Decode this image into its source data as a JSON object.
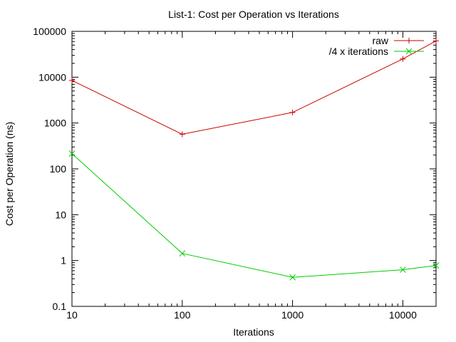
{
  "chart_data": {
    "type": "line",
    "title": "List-1: Cost per Operation vs Iterations",
    "xlabel": "Iterations",
    "ylabel": "Cost per Operation (ns)",
    "x_scale": "log",
    "y_scale": "log",
    "xlim": [
      10,
      20000
    ],
    "ylim": [
      0.1,
      100000
    ],
    "x_ticks": [
      {
        "value": 10,
        "label": "10"
      },
      {
        "value": 100,
        "label": "100"
      },
      {
        "value": 1000,
        "label": "1000"
      },
      {
        "value": 10000,
        "label": "10000"
      }
    ],
    "y_ticks": [
      {
        "value": 0.1,
        "label": "0.1"
      },
      {
        "value": 1,
        "label": "1"
      },
      {
        "value": 10,
        "label": "10"
      },
      {
        "value": 100,
        "label": "100"
      },
      {
        "value": 1000,
        "label": "1000"
      },
      {
        "value": 10000,
        "label": "10000"
      },
      {
        "value": 100000,
        "label": "100000"
      }
    ],
    "grid": false,
    "legend_position": "top-right",
    "series": [
      {
        "name": "raw",
        "color": "#cc0000",
        "marker": "plus",
        "points": [
          {
            "x": 10,
            "y": 8500
          },
          {
            "x": 100,
            "y": 570
          },
          {
            "x": 1000,
            "y": 1700
          },
          {
            "x": 10000,
            "y": 25000
          },
          {
            "x": 20000,
            "y": 62000
          }
        ]
      },
      {
        "name": "/4 x iterations",
        "color": "#00cc00",
        "marker": "cross",
        "points": [
          {
            "x": 10,
            "y": 215
          },
          {
            "x": 100,
            "y": 1.43
          },
          {
            "x": 1000,
            "y": 0.43
          },
          {
            "x": 10000,
            "y": 0.63
          },
          {
            "x": 20000,
            "y": 0.78
          }
        ]
      }
    ]
  }
}
